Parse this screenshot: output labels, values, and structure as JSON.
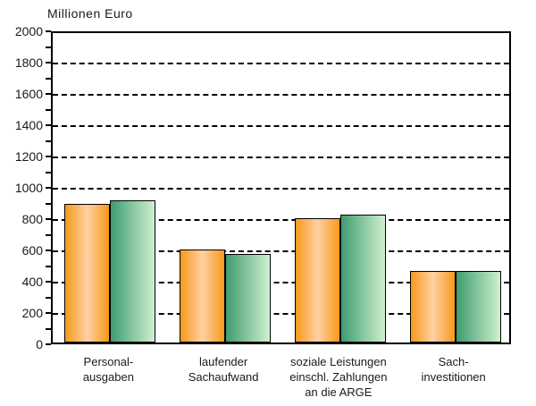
{
  "title": "Millionen Euro",
  "colors": {
    "orange_edge": "#F7991B",
    "orange_center": "#FFD0A3",
    "green_dark": "#3F9C70",
    "green_light": "#CFF0CF",
    "axis": "#000000",
    "text": "#1a1a1a",
    "background": "#ffffff"
  },
  "chart_data": {
    "type": "bar",
    "title": "Millionen Euro",
    "categories": [
      "Personal-\nausgaben",
      "laufender\nSachaufwand",
      "soziale Leistungen\neinschl. Zahlungen\nan  die ARGE",
      "Sach-\ninvestitionen"
    ],
    "series": [
      {
        "name": "orange",
        "color": "orange-gradient",
        "values": [
          885,
          595,
          795,
          460
        ]
      },
      {
        "name": "green",
        "color": "green-gradient",
        "values": [
          910,
          565,
          815,
          460
        ]
      }
    ],
    "xlabel": "",
    "ylabel": "Millionen Euro",
    "ylim": [
      0,
      2000
    ],
    "ytick_step": 200,
    "minor_tick_step": 100,
    "ytick_labels": [
      "0",
      "200",
      "400",
      "600",
      "800",
      "1000",
      "1200",
      "1400",
      "1600",
      "1800",
      "2000"
    ],
    "grid": "horizontal-dashed",
    "legend": "none"
  }
}
